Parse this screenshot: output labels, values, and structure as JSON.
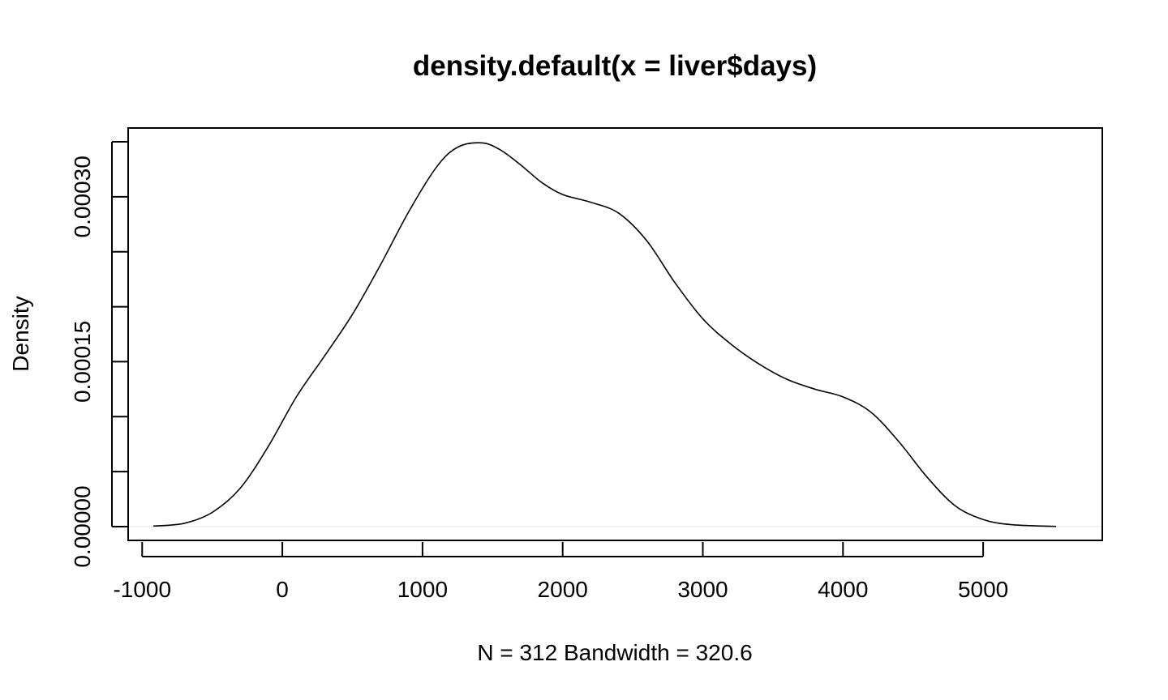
{
  "chart_data": {
    "type": "line",
    "title": "density.default(x = liver$days)",
    "xlabel": "N = 312   Bandwidth = 320.6",
    "ylabel": "Density",
    "xlim": [
      -1100,
      5850
    ],
    "ylim": [
      -1.25e-05,
      0.0003625
    ],
    "x_ticks": [
      -1000,
      0,
      1000,
      2000,
      3000,
      4000,
      5000
    ],
    "x_tick_labels": [
      "-1000",
      "0",
      "1000",
      "2000",
      "3000",
      "4000",
      "5000"
    ],
    "y_ticks": [
      0,
      5e-05,
      0.0001,
      0.00015,
      0.0002,
      0.00025,
      0.0003,
      0.00035
    ],
    "y_tick_labels": [
      "0.00000",
      "",
      "",
      "0.00015",
      "",
      "",
      "0.00030",
      ""
    ],
    "grid": false,
    "legend": "none",
    "series": [
      {
        "x": [
          -920,
          -700,
          -500,
          -300,
          -100,
          100,
          300,
          500,
          700,
          900,
          1100,
          1250,
          1420,
          1550,
          1700,
          1850,
          2000,
          2200,
          2400,
          2600,
          2800,
          3000,
          3200,
          3400,
          3600,
          3800,
          4000,
          4200,
          4400,
          4600,
          4800,
          5000,
          5200,
          5520
        ],
        "y": [
          5e-07,
          3e-06,
          1.3e-05,
          3.5e-05,
          7.3e-05,
          0.000118,
          0.000155,
          0.000193,
          0.000238,
          0.000286,
          0.000327,
          0.000345,
          0.000349,
          0.000343,
          0.000329,
          0.000313,
          0.000302,
          0.000295,
          0.000285,
          0.00026,
          0.000222,
          0.000189,
          0.000166,
          0.000148,
          0.000134,
          0.000125,
          0.000118,
          0.000104,
          7.7e-05,
          4.5e-05,
          1.9e-05,
          6.5e-06,
          1.8e-06,
          2e-07
        ]
      }
    ]
  }
}
